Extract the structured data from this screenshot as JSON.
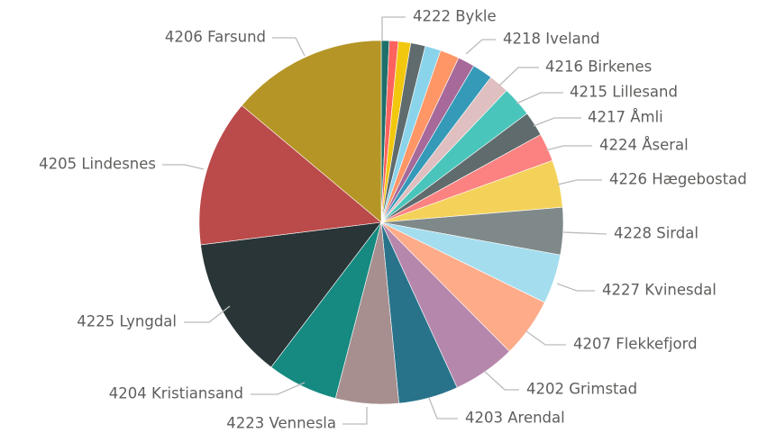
{
  "chart_data": {
    "type": "pie",
    "categories": [
      "4222 Bykle",
      null,
      null,
      null,
      null,
      null,
      "4218 Iveland",
      null,
      "4216 Birkenes",
      "4215 Lillesand",
      "4217 Åmli",
      "4224 Åseral",
      "4226 Hægebostad",
      "4228 Sirdal",
      "4227 Kvinesdal",
      "4207 Flekkefjord",
      "4202 Grimstad",
      "4203 Arendal",
      "4223 Vennesla",
      "4204 Kristiansand",
      "4225 Lyngdal",
      "4205 Lindesnes",
      "4206 Farsund"
    ],
    "values": [
      0.7,
      0.8,
      1.1,
      1.3,
      1.4,
      1.7,
      1.5,
      1.8,
      1.8,
      2.7,
      2.2,
      2.5,
      4.2,
      4.2,
      4.4,
      5.3,
      5.6,
      5.3,
      5.6,
      6.3,
      12.7,
      13.1,
      13.9
    ],
    "colors": [
      "#1f6f6b",
      "#fd625e",
      "#f2c80f",
      "#5f6b6d",
      "#8ad4eb",
      "#fe9666",
      "#a66999",
      "#3599b8",
      "#dfbfbf",
      "#4ac5bb",
      "#5f6b6d",
      "#fb8281",
      "#f4d25a",
      "#7f898a",
      "#a4ddee",
      "#fdab89",
      "#b687ac",
      "#28738a",
      "#a78f8f",
      "#168980",
      "#293537",
      "#bb4a4a",
      "#b59525"
    ]
  }
}
